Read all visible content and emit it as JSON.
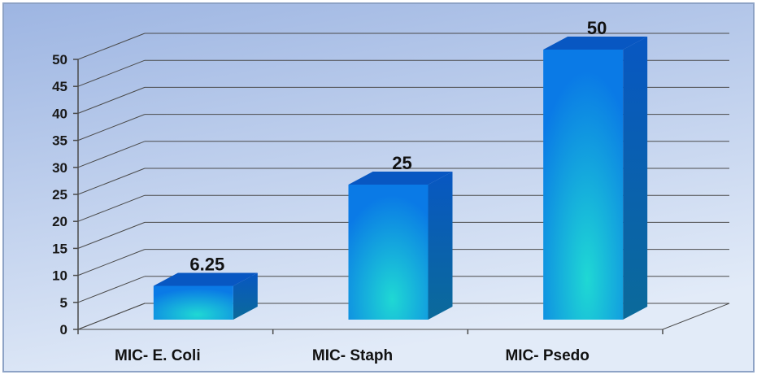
{
  "chart_data": {
    "type": "bar",
    "categories": [
      "MIC- E. Coli",
      "MIC- Staph",
      "MIC- Psedo"
    ],
    "values": [
      6.25,
      25,
      50
    ],
    "data_labels": [
      "6.25",
      "25",
      "50"
    ],
    "ylim": [
      0,
      50
    ],
    "yticks": [
      "0",
      "5",
      "10",
      "15",
      "20",
      "25",
      "30",
      "35",
      "40",
      "45",
      "50"
    ],
    "grid": true,
    "legend": "none",
    "style": "3d-column",
    "colors": {
      "background_top": "#9db5e2",
      "background_bottom": "#e2ebf8",
      "bar_front_top": "#0a7ae6",
      "bar_front_bottom": "#1fd8d4",
      "bar_side": "#0b6a9a",
      "bar_top": "#0857c2",
      "gridline": "#4a4a4a"
    }
  }
}
